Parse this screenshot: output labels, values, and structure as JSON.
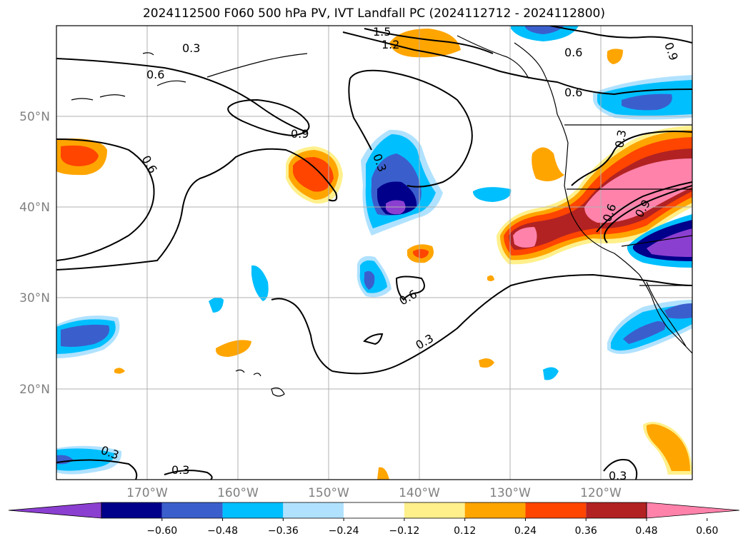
{
  "title": "2024112500 F060 500 hPa PV, IVT Landfall PC (2024112712 - 2024112800)",
  "lat_labels": [
    "20°N",
    "30°N",
    "40°N",
    "50°N"
  ],
  "lon_labels": [
    "170°W",
    "160°W",
    "150°W",
    "140°W",
    "130°W",
    "120°W"
  ],
  "colorbar": {
    "ticks": [
      "−0.60",
      "−0.48",
      "−0.36",
      "−0.24",
      "−0.12",
      "0.12",
      "0.24",
      "0.36",
      "0.48",
      "0.60"
    ],
    "colors": [
      "#8b3fd0",
      "#00008b",
      "#3a5fcd",
      "#00bfff",
      "#b0e2ff",
      "#ffffff",
      "#fff08c",
      "#ffa500",
      "#ff4500",
      "#b22222",
      "#ff82ab"
    ]
  },
  "contour_labels": [
    "0.3",
    "0.6",
    "0.9",
    "1.2",
    "1.5"
  ]
}
